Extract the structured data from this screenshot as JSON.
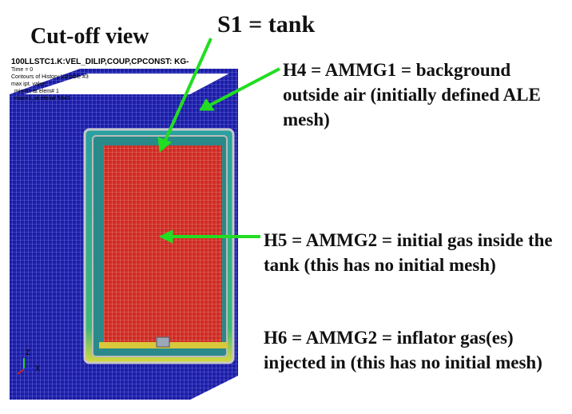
{
  "title": "Cut-off view",
  "s1_label": "S1 = tank",
  "h4_text": "H4 = AMMG1 = background outside air (initially defined ALE mesh)",
  "h5_text": "H5 = AMMG2 = initial gas inside the tank (this has no initial mesh)",
  "h6_text": "H6 = AMMG2 = inflator gas(es) injected in (this has no initial mesh)",
  "sim": {
    "header": "100LLSTC1.K:VEL_DILIP,COUP,CPCONST: KG-",
    "time_label": "Time =        0",
    "contours": "Contours of History Variable #3",
    "max_ipt": "max ipt. value",
    "min_line": "min=0, at elem# 1",
    "max_line": "max=1, at elem# 5343",
    "axis_z": "Z",
    "axis_x": "X"
  },
  "colors": {
    "mesh_blue": "#1a1aa8",
    "gas_red": "#cc2222",
    "arrow_green": "#22dd22"
  }
}
